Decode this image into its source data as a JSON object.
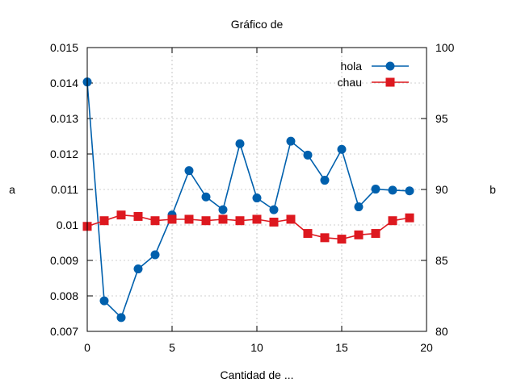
{
  "chart_data": {
    "type": "line",
    "title": "Gráfico de",
    "xlabel": "Cantidad de ...",
    "ylabel": "a",
    "y2label": "b",
    "xlim": [
      0,
      20
    ],
    "ylim": [
      0.007,
      0.015
    ],
    "y2lim": [
      80,
      100
    ],
    "x_ticks": [
      0,
      5,
      10,
      15,
      20
    ],
    "y_ticks": [
      0.007,
      0.008,
      0.009,
      0.01,
      0.011,
      0.012,
      0.013,
      0.014,
      0.015
    ],
    "y2_ticks": [
      80,
      85,
      90,
      95,
      100
    ],
    "grid": true,
    "legend_position": "top-right",
    "series": [
      {
        "name": "hola",
        "axis": "left",
        "marker": "circle",
        "color": "#0060ad",
        "x": [
          0,
          1,
          2,
          3,
          4,
          5,
          6,
          7,
          8,
          9,
          10,
          11,
          12,
          13,
          14,
          15,
          16,
          17,
          18,
          19
        ],
        "values": [
          0.01403,
          0.00786,
          0.00739,
          0.00876,
          0.00916,
          0.01028,
          0.01153,
          0.01079,
          0.01043,
          0.01229,
          0.01076,
          0.01043,
          0.01236,
          0.01197,
          0.01126,
          0.01213,
          0.01051,
          0.01101,
          0.01098,
          0.01096
        ]
      },
      {
        "name": "chau",
        "axis": "right",
        "marker": "square",
        "color": "#dd181f",
        "x": [
          0,
          1,
          2,
          3,
          4,
          5,
          6,
          7,
          8,
          9,
          10,
          11,
          12,
          13,
          14,
          15,
          16,
          17,
          18,
          19
        ],
        "values": [
          87.4,
          87.8,
          88.2,
          88.1,
          87.8,
          87.9,
          87.9,
          87.8,
          87.9,
          87.8,
          87.9,
          87.7,
          87.9,
          86.9,
          86.6,
          86.5,
          86.8,
          86.9,
          87.8,
          88.0
        ]
      }
    ]
  }
}
